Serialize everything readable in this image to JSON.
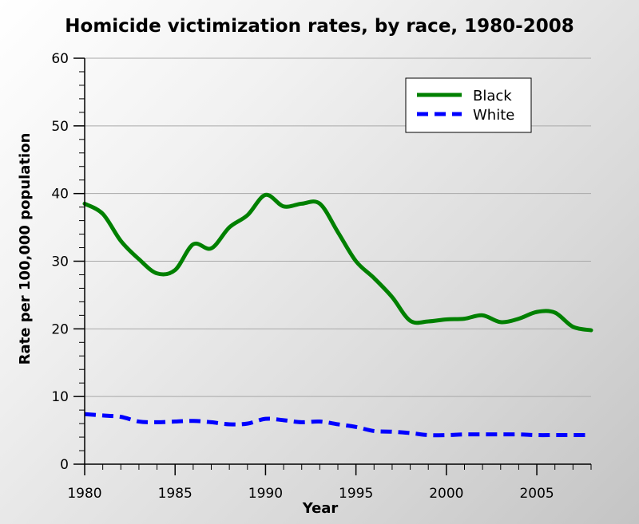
{
  "chart_data": {
    "type": "line",
    "title": "Homicide victimization rates, by race, 1980-2008",
    "xlabel": "Year",
    "ylabel": "Rate per 100,000 population",
    "xlim": [
      1980,
      2008
    ],
    "ylim": [
      0,
      60
    ],
    "x_ticks": [
      "1980",
      "1985",
      "1990",
      "1995",
      "2000",
      "2005"
    ],
    "y_ticks": [
      "0",
      "10",
      "20",
      "30",
      "40",
      "50",
      "60"
    ],
    "grid": true,
    "legend_position": "top-right",
    "x": [
      1980,
      1981,
      1982,
      1983,
      1984,
      1985,
      1986,
      1987,
      1988,
      1989,
      1990,
      1991,
      1992,
      1993,
      1994,
      1995,
      1996,
      1997,
      1998,
      1999,
      2000,
      2001,
      2002,
      2003,
      2004,
      2005,
      2006,
      2007,
      2008
    ],
    "series": [
      {
        "name": "Black",
        "color": "#008000",
        "style": "solid",
        "values": [
          38.5,
          37.0,
          33.0,
          30.3,
          28.2,
          28.7,
          32.5,
          31.9,
          35.0,
          36.8,
          39.8,
          38.1,
          38.5,
          38.5,
          34.3,
          30.0,
          27.5,
          24.7,
          21.2,
          21.1,
          21.4,
          21.5,
          22.0,
          21.0,
          21.5,
          22.5,
          22.4,
          20.3,
          19.8
        ]
      },
      {
        "name": "White",
        "color": "#0000ff",
        "style": "dashed",
        "values": [
          7.4,
          7.2,
          7.0,
          6.3,
          6.2,
          6.3,
          6.4,
          6.2,
          5.9,
          6.0,
          6.7,
          6.5,
          6.2,
          6.3,
          5.9,
          5.5,
          4.9,
          4.8,
          4.6,
          4.3,
          4.3,
          4.4,
          4.4,
          4.4,
          4.4,
          4.3,
          4.3,
          4.3,
          4.3
        ]
      }
    ]
  }
}
